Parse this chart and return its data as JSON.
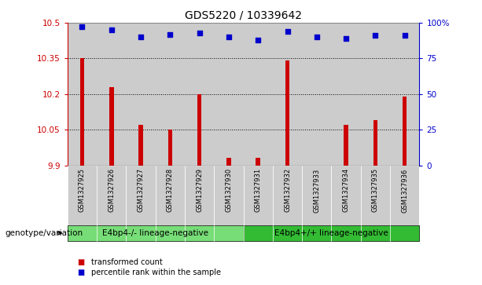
{
  "title": "GDS5220 / 10339642",
  "samples": [
    "GSM1327925",
    "GSM1327926",
    "GSM1327927",
    "GSM1327928",
    "GSM1327929",
    "GSM1327930",
    "GSM1327931",
    "GSM1327932",
    "GSM1327933",
    "GSM1327934",
    "GSM1327935",
    "GSM1327936"
  ],
  "bar_values": [
    10.35,
    10.23,
    10.07,
    10.05,
    10.2,
    9.93,
    9.93,
    10.34,
    9.9,
    10.07,
    10.09,
    10.19
  ],
  "percentile_values": [
    97,
    95,
    90,
    92,
    93,
    90,
    88,
    94,
    90,
    89,
    91,
    91
  ],
  "ylim": [
    9.9,
    10.5
  ],
  "ylim_right": [
    0,
    100
  ],
  "yticks_left": [
    9.9,
    10.05,
    10.2,
    10.35,
    10.5
  ],
  "yticks_right": [
    0,
    25,
    50,
    75,
    100
  ],
  "bar_color": "#cc0000",
  "dot_color": "#0000cc",
  "bar_bottom": 9.9,
  "groups": [
    {
      "label": "E4bp4-/- lineage-negative",
      "start": 0,
      "end": 6,
      "color": "#77dd77"
    },
    {
      "label": "E4bp4+/+ lineage-negative",
      "start": 6,
      "end": 12,
      "color": "#33bb33"
    }
  ],
  "col_bg_color": "#cccccc",
  "group_row_label": "genotype/variation",
  "legend_bar_label": "transformed count",
  "legend_dot_label": "percentile rank within the sample",
  "title_fontsize": 10,
  "tick_fontsize": 7.5,
  "label_fontsize": 8,
  "grid_color": "#000000",
  "background_color": "#ffffff",
  "plot_area_color": "#ffffff"
}
